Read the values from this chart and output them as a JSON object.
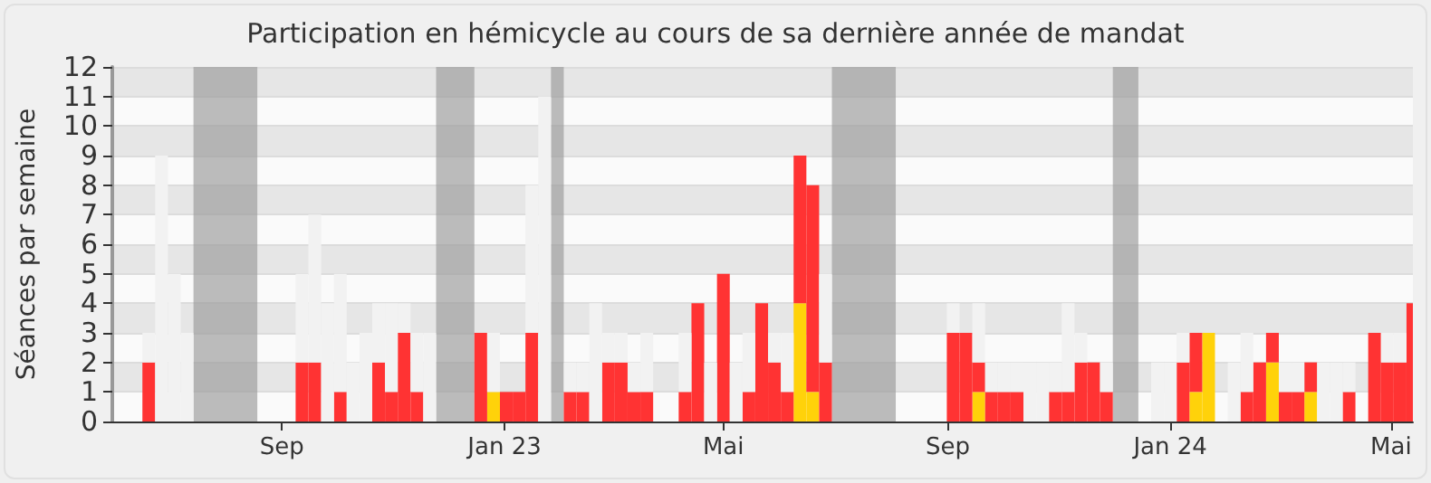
{
  "chart_data": {
    "type": "bar",
    "title": "Participation en hémicycle au cours de sa dernière année de mandat",
    "ylabel": "Séances par semaine",
    "stacked": true,
    "grid": "y",
    "x": [
      "2022-06-20",
      "2022-06-27",
      "2022-07-04",
      "2022-07-11",
      "2022-07-18",
      "2022-07-25",
      "2022-08-01",
      "2022-08-08",
      "2022-08-15",
      "2022-08-22",
      "2022-08-29",
      "2022-09-05",
      "2022-09-12",
      "2022-09-19",
      "2022-09-26",
      "2022-10-03",
      "2022-10-10",
      "2022-10-17",
      "2022-10-24",
      "2022-10-31",
      "2022-11-07",
      "2022-11-14",
      "2022-11-21",
      "2022-11-28",
      "2022-12-05",
      "2022-12-12",
      "2022-12-19",
      "2022-12-26",
      "2023-01-02",
      "2023-01-09",
      "2023-01-16",
      "2023-01-23",
      "2023-01-30",
      "2023-02-06",
      "2023-02-13",
      "2023-02-20",
      "2023-02-27",
      "2023-03-06",
      "2023-03-13",
      "2023-03-20",
      "2023-03-27",
      "2023-04-03",
      "2023-04-10",
      "2023-04-17",
      "2023-04-24",
      "2023-05-01",
      "2023-05-08",
      "2023-05-15",
      "2023-05-22",
      "2023-05-29",
      "2023-06-05",
      "2023-06-12",
      "2023-06-19",
      "2023-06-26",
      "2023-07-03",
      "2023-07-10",
      "2023-07-17",
      "2023-07-24",
      "2023-07-31",
      "2023-08-07",
      "2023-08-14",
      "2023-08-21",
      "2023-08-28",
      "2023-09-04",
      "2023-09-11",
      "2023-09-18",
      "2023-09-25",
      "2023-10-02",
      "2023-10-09",
      "2023-10-16",
      "2023-10-23",
      "2023-10-30",
      "2023-11-06",
      "2023-11-13",
      "2023-11-20",
      "2023-11-27",
      "2023-12-04",
      "2023-12-11",
      "2023-12-18",
      "2023-12-25",
      "2024-01-01",
      "2024-01-08",
      "2024-01-15",
      "2024-01-22",
      "2024-01-29",
      "2024-02-05",
      "2024-02-12",
      "2024-02-19",
      "2024-02-26",
      "2024-03-04",
      "2024-03-11",
      "2024-03-18",
      "2024-03-25",
      "2024-04-01",
      "2024-04-08",
      "2024-04-15",
      "2024-04-22",
      "2024-04-29",
      "2024-05-06",
      "2024-05-13"
    ],
    "series": [
      {
        "color": "#ffd20a",
        "values": [
          null,
          null,
          null,
          null,
          null,
          null,
          null,
          null,
          null,
          null,
          null,
          null,
          null,
          null,
          null,
          null,
          null,
          null,
          null,
          null,
          null,
          null,
          null,
          null,
          null,
          null,
          null,
          1,
          null,
          null,
          null,
          null,
          null,
          null,
          null,
          null,
          null,
          null,
          null,
          null,
          null,
          null,
          null,
          null,
          null,
          null,
          null,
          null,
          null,
          null,
          null,
          4,
          1,
          null,
          null,
          null,
          null,
          null,
          null,
          null,
          null,
          null,
          null,
          null,
          null,
          1,
          null,
          null,
          null,
          null,
          null,
          null,
          null,
          null,
          null,
          null,
          null,
          null,
          null,
          null,
          null,
          null,
          1,
          3,
          null,
          null,
          null,
          null,
          2,
          null,
          null,
          1,
          null,
          null,
          null,
          null,
          null,
          null,
          null,
          null
        ]
      },
      {
        "color": "#ff3333",
        "values": [
          2,
          null,
          null,
          null,
          null,
          null,
          null,
          null,
          null,
          null,
          null,
          null,
          2,
          2,
          null,
          1,
          null,
          null,
          2,
          1,
          3,
          1,
          null,
          null,
          null,
          null,
          3,
          null,
          1,
          1,
          3,
          null,
          null,
          1,
          1,
          null,
          2,
          2,
          1,
          1,
          null,
          null,
          1,
          4,
          null,
          5,
          null,
          1,
          4,
          2,
          1,
          5,
          7,
          2,
          null,
          null,
          null,
          null,
          null,
          null,
          null,
          null,
          null,
          3,
          3,
          1,
          1,
          1,
          1,
          null,
          null,
          1,
          1,
          2,
          2,
          1,
          null,
          null,
          null,
          null,
          null,
          2,
          2,
          null,
          null,
          null,
          1,
          2,
          1,
          1,
          1,
          1,
          null,
          null,
          1,
          null,
          3,
          2,
          2,
          4
        ]
      },
      {
        "color": "#f2f2f2",
        "values": [
          1,
          9,
          5,
          3,
          null,
          null,
          null,
          null,
          null,
          null,
          null,
          null,
          3,
          5,
          4,
          4,
          2,
          3,
          2,
          3,
          1,
          2,
          3,
          null,
          null,
          null,
          null,
          2,
          null,
          null,
          5,
          11,
          null,
          1,
          1,
          4,
          1,
          1,
          1,
          2,
          null,
          null,
          2,
          null,
          2,
          null,
          2,
          2,
          null,
          1,
          2,
          null,
          null,
          3,
          null,
          null,
          null,
          null,
          null,
          null,
          null,
          null,
          null,
          1,
          null,
          2,
          1,
          1,
          1,
          2,
          2,
          1,
          3,
          1,
          null,
          1,
          null,
          null,
          null,
          2,
          2,
          1,
          null,
          null,
          null,
          2,
          2,
          null,
          null,
          1,
          1,
          null,
          2,
          2,
          1,
          null,
          null,
          1,
          1,
          null
        ]
      }
    ],
    "xlim": [
      "2022-05-31",
      "2024-05-13"
    ],
    "xticks": [
      {
        "value": "2022-09-01",
        "label": "Sep"
      },
      {
        "value": "2023-01-01",
        "label": "Jan 23"
      },
      {
        "value": "2023-05-01",
        "label": "Mai"
      },
      {
        "value": "2023-09-01",
        "label": "Sep"
      },
      {
        "value": "2024-01-01",
        "label": "Jan 24"
      },
      {
        "value": "2024-05-01",
        "label": "Mai"
      }
    ],
    "ylim": [
      0,
      12
    ],
    "yticks": [
      0,
      1,
      2,
      3,
      4,
      5,
      6,
      7,
      8,
      9,
      10,
      11,
      12
    ],
    "bands": [
      {
        "axis": "x",
        "from": "2022-07-14T12:00",
        "to": "2022-08-18T12:00",
        "color": "#999999"
      },
      {
        "axis": "x",
        "from": "2022-11-24T12:00",
        "to": "2022-12-15T12:00",
        "color": "#999999"
      },
      {
        "axis": "x",
        "from": "2023-01-26T12:00",
        "to": "2023-02-02T12:00",
        "color": "#999999"
      },
      {
        "axis": "x",
        "from": "2023-06-29T12:00",
        "to": "2023-08-03T12:00",
        "color": "#999999"
      },
      {
        "axis": "x",
        "from": "2023-11-30T12:00",
        "to": "2023-12-14T12:00",
        "color": "#999999"
      }
    ]
  }
}
